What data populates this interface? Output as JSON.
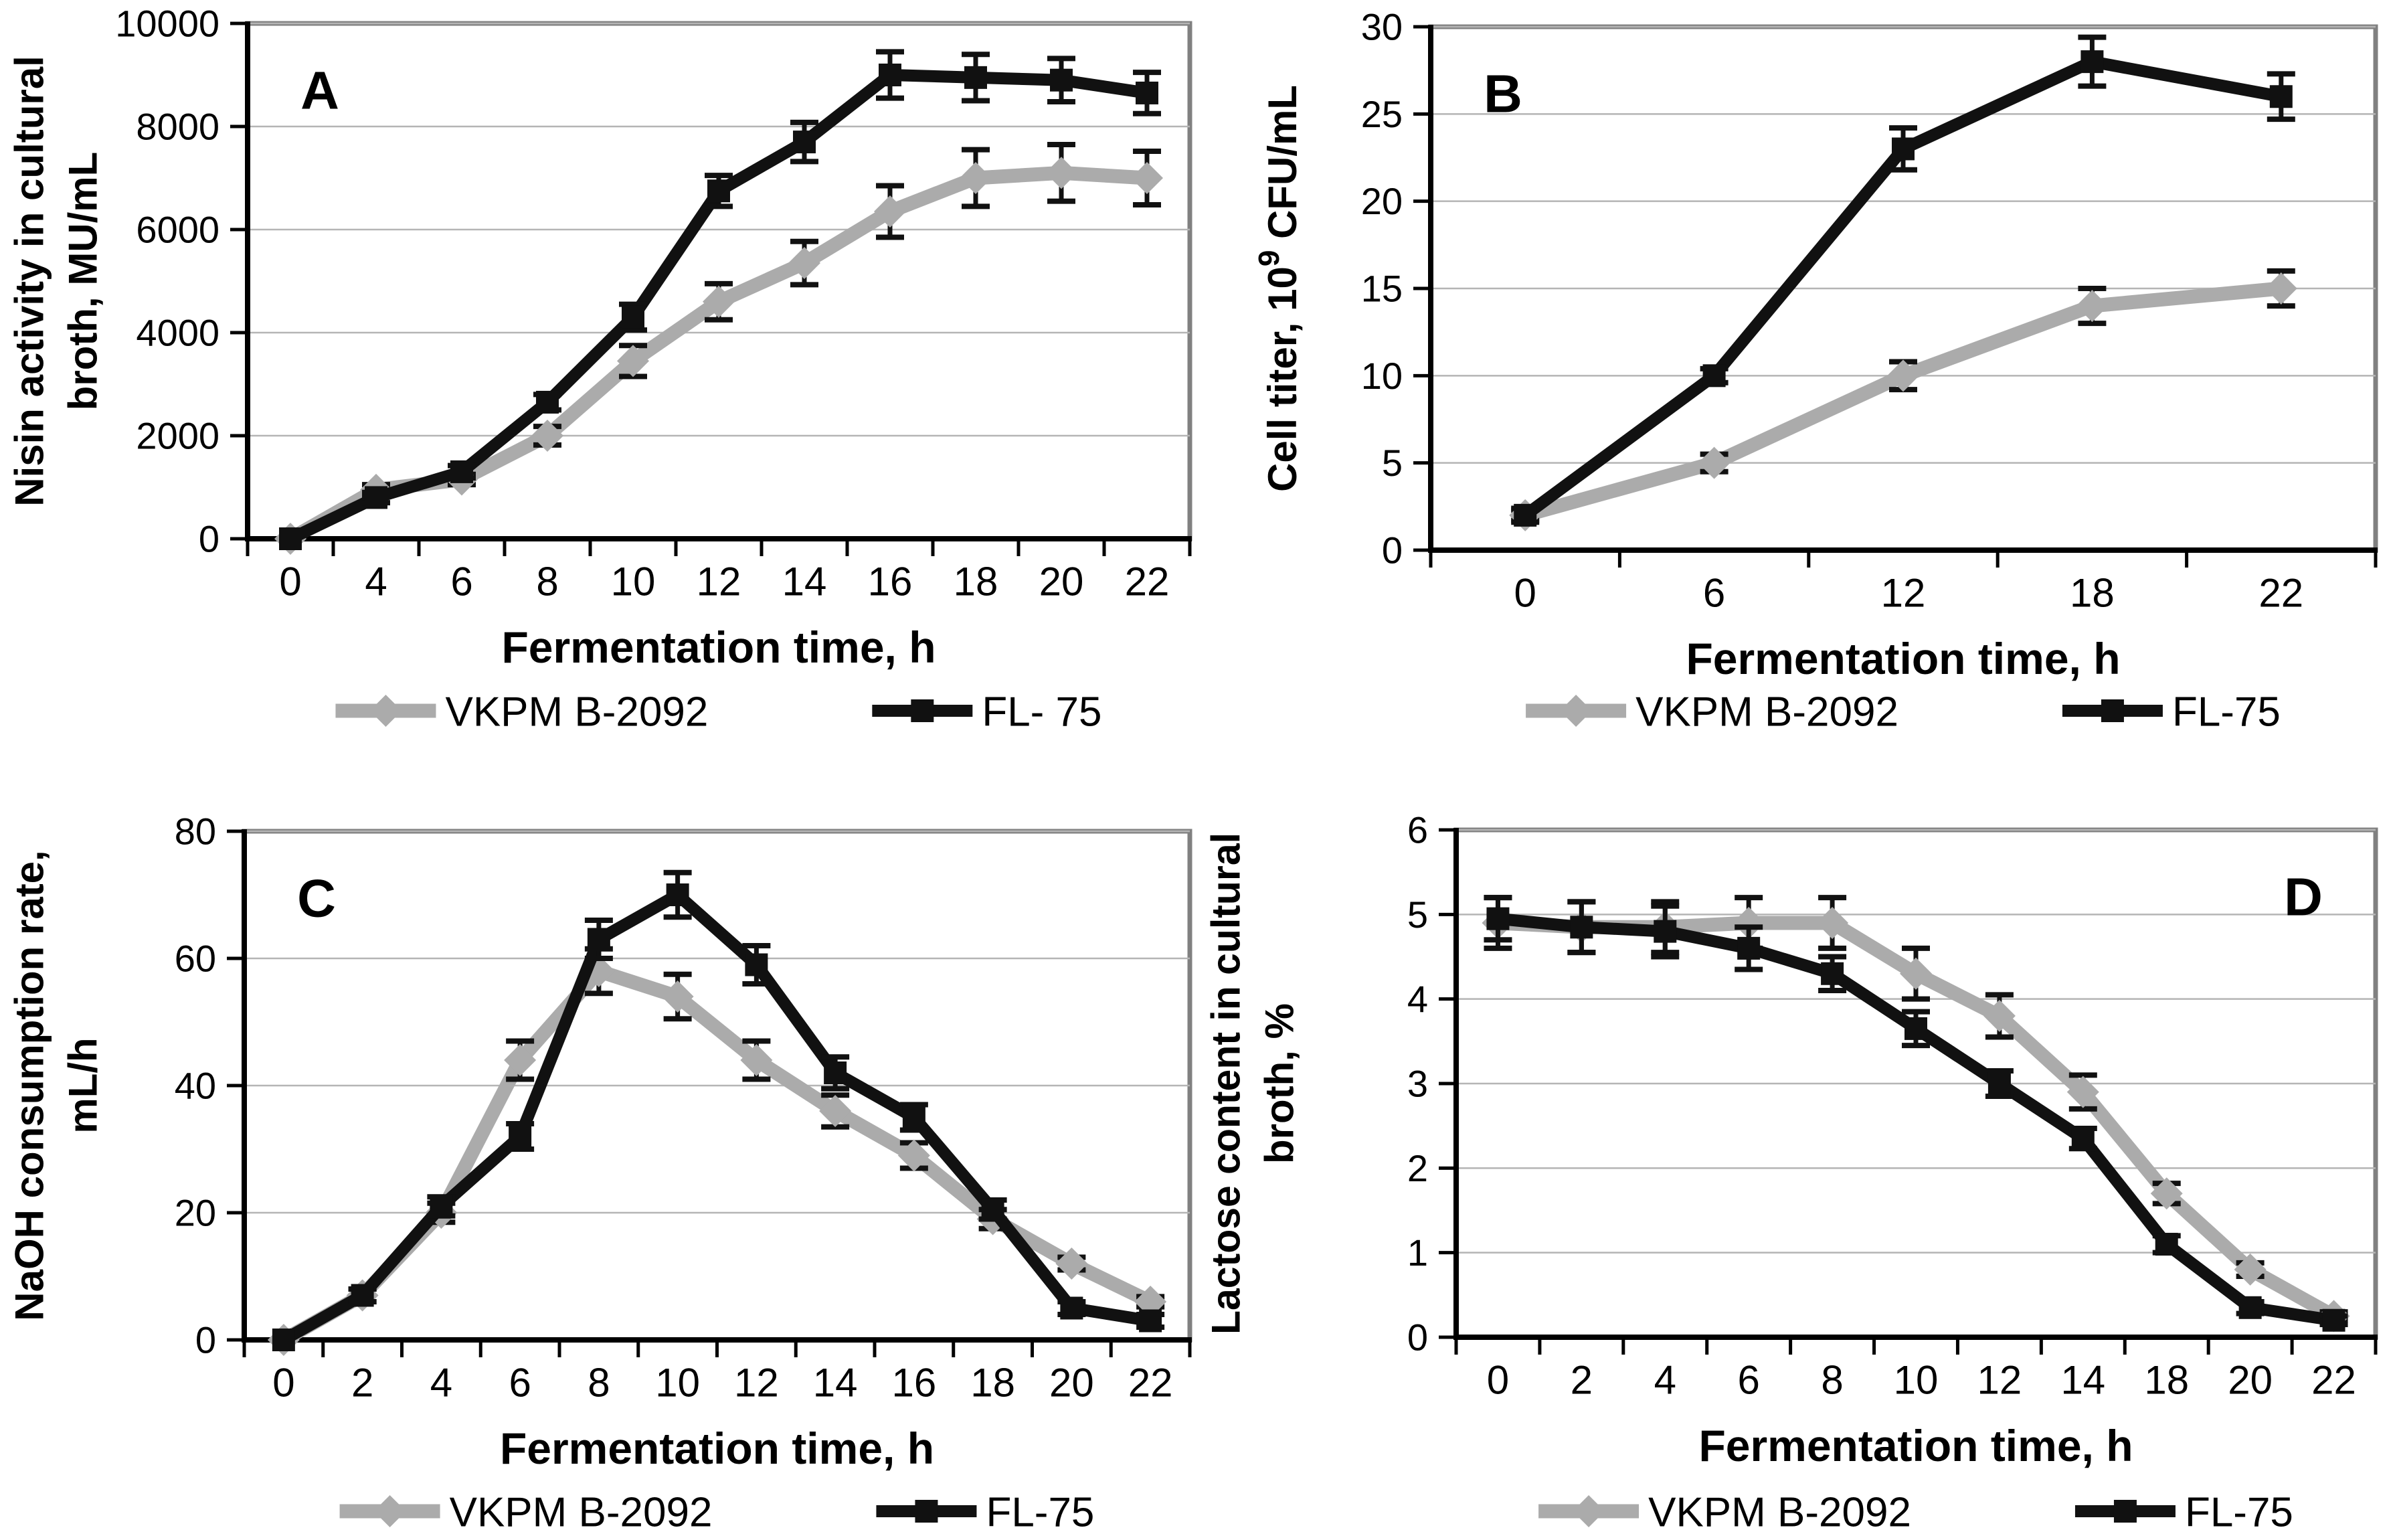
{
  "figure": {
    "background": "#ffffff",
    "shared_xlabel": "Fermentation time, h",
    "strains": [
      "VKPM B-2092",
      "FL-75"
    ],
    "colors": {
      "vkpm_b2092": "#ababab",
      "fl_75": "#111111",
      "error_bars": "#111111",
      "gridlines": "#b5b5b5",
      "plot_frame": "#808080",
      "axis": "#000000"
    }
  },
  "chart_data": [
    {
      "id": "A",
      "type": "line",
      "panel_label": "A",
      "ylabel_lines": [
        "Nisin activity in cultural",
        "broth, MU/mL"
      ],
      "xlabel": "Fermentation time, h",
      "categories": [
        "0",
        "4",
        "6",
        "8",
        "10",
        "12",
        "14",
        "16",
        "18",
        "20",
        "22"
      ],
      "ylim": [
        0,
        10000
      ],
      "yticks": [
        0,
        2000,
        4000,
        6000,
        8000,
        10000
      ],
      "grid": true,
      "legend_position": "bottom",
      "series": [
        {
          "name": "VKPM B-2092",
          "color": "#ababab",
          "marker": "diamond",
          "values": [
            0,
            950,
            1150,
            2000,
            3450,
            4600,
            5350,
            6350,
            7000,
            7100,
            7000
          ],
          "errors": [
            0,
            100,
            100,
            180,
            300,
            350,
            420,
            500,
            550,
            550,
            520
          ]
        },
        {
          "name": "FL- 75",
          "color": "#111111",
          "marker": "square",
          "values": [
            0,
            800,
            1300,
            2650,
            4300,
            6750,
            7700,
            9000,
            8950,
            8900,
            8650
          ],
          "errors": [
            0,
            100,
            120,
            150,
            250,
            300,
            380,
            450,
            450,
            420,
            400
          ]
        }
      ]
    },
    {
      "id": "B",
      "type": "line",
      "panel_label": "B",
      "ylabel_rich": [
        {
          "t": "Cell titer, 10"
        },
        {
          "t": "9",
          "sup": true
        },
        {
          "t": " CFU/mL"
        }
      ],
      "xlabel": "Fermentation time, h",
      "categories": [
        "0",
        "6",
        "12",
        "18",
        "22"
      ],
      "ylim": [
        0,
        30
      ],
      "yticks": [
        0,
        5,
        10,
        15,
        20,
        25,
        30
      ],
      "grid": true,
      "legend_position": "bottom",
      "series": [
        {
          "name": "VKPM B-2092",
          "color": "#ababab",
          "marker": "diamond",
          "values": [
            2,
            5,
            10,
            14,
            15
          ],
          "errors": [
            0.3,
            0.5,
            0.8,
            1.0,
            1.0
          ]
        },
        {
          "name": "FL-75",
          "color": "#111111",
          "marker": "square",
          "values": [
            2,
            10,
            23,
            28,
            26
          ],
          "errors": [
            0.4,
            0.4,
            1.2,
            1.4,
            1.3
          ]
        }
      ]
    },
    {
      "id": "C",
      "type": "line",
      "panel_label": "C",
      "ylabel_lines": [
        "NaOH consumption rate,",
        "mL/h"
      ],
      "xlabel": "Fermentation time, h",
      "categories": [
        "0",
        "2",
        "4",
        "6",
        "8",
        "10",
        "12",
        "14",
        "16",
        "18",
        "20",
        "22"
      ],
      "ylim": [
        0,
        80
      ],
      "yticks": [
        0,
        20,
        40,
        60,
        80
      ],
      "grid": true,
      "legend_position": "bottom",
      "series": [
        {
          "name": "VKPM B-2092",
          "color": "#ababab",
          "marker": "diamond",
          "values": [
            0,
            7,
            20,
            44,
            58,
            54,
            44,
            36,
            29,
            19,
            12,
            6
          ],
          "errors": [
            0,
            1,
            1.5,
            3,
            3.5,
            3.5,
            3,
            2.5,
            2,
            1.5,
            1,
            0.8
          ]
        },
        {
          "name": "FL-75",
          "color": "#111111",
          "marker": "square",
          "values": [
            0,
            7,
            21,
            32,
            63,
            70,
            59,
            42,
            35,
            20.5,
            5,
            3
          ],
          "errors": [
            0,
            1,
            1.5,
            2,
            3,
            3.5,
            3,
            2.5,
            2,
            1.5,
            1,
            1
          ]
        }
      ]
    },
    {
      "id": "D",
      "type": "line",
      "panel_label": "D",
      "ylabel_lines": [
        "Lactose content in cultural",
        "broth, %"
      ],
      "xlabel": "Fermentation time, h",
      "categories": [
        "0",
        "2",
        "4",
        "6",
        "8",
        "10",
        "12",
        "14",
        "18",
        "20",
        "22"
      ],
      "ylim": [
        0,
        6
      ],
      "yticks": [
        0,
        1,
        2,
        3,
        4,
        5,
        6
      ],
      "grid": true,
      "legend_position": "bottom",
      "series": [
        {
          "name": "VKPM B-2092",
          "color": "#ababab",
          "marker": "diamond",
          "values": [
            4.9,
            4.85,
            4.85,
            4.9,
            4.9,
            4.3,
            3.8,
            2.9,
            1.7,
            0.8,
            0.25
          ],
          "errors": [
            0.3,
            0.3,
            0.3,
            0.3,
            0.3,
            0.3,
            0.25,
            0.2,
            0.12,
            0.08,
            0.05
          ]
        },
        {
          "name": "FL-75",
          "color": "#111111",
          "marker": "square",
          "values": [
            4.95,
            4.85,
            4.8,
            4.6,
            4.3,
            3.65,
            3.0,
            2.35,
            1.1,
            0.35,
            0.2
          ],
          "errors": [
            0.25,
            0.3,
            0.3,
            0.25,
            0.2,
            0.2,
            0.15,
            0.12,
            0.1,
            0.07,
            0.05
          ]
        }
      ]
    }
  ]
}
